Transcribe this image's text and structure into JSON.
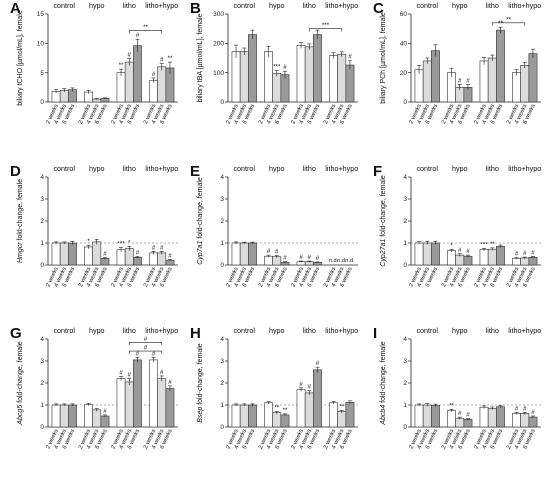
{
  "figure": {
    "groups": [
      "control",
      "hypo",
      "litho",
      "litho+hypo"
    ],
    "week_labels": [
      "2 weeks",
      "4 weeks",
      "6 weeks"
    ],
    "bar_colors": [
      "#ffffff",
      "#dcdcdc",
      "#9a9a9a"
    ]
  },
  "chart_data": [
    {
      "panel": "A",
      "type": "bar",
      "ylabel": "biliary tCHO [µmol/mL], female",
      "ylim": [
        0,
        15
      ],
      "yticks": [
        0,
        5,
        10,
        15
      ],
      "yticklabels": [
        "0",
        "5",
        "10",
        "15"
      ],
      "categories": [
        "control",
        "hypo",
        "litho",
        "litho+hypo"
      ],
      "series": [
        {
          "name": "2 weeks",
          "values": [
            1.8,
            1.7,
            5.0,
            3.7
          ],
          "errors": [
            0.3,
            0.3,
            0.6,
            0.4
          ]
        },
        {
          "name": "4 weeks",
          "values": [
            2.0,
            0.5,
            6.8,
            6.0
          ],
          "errors": [
            0.3,
            0.1,
            0.6,
            0.6
          ]
        },
        {
          "name": "6 weeks",
          "values": [
            2.1,
            0.6,
            9.6,
            5.8
          ],
          "errors": [
            0.3,
            0.1,
            1.1,
            1.0
          ]
        }
      ],
      "annotations": [
        {
          "group": 2,
          "bar": 0,
          "text": "**"
        },
        {
          "group": 2,
          "bar": 1,
          "text": "#"
        },
        {
          "group": 2,
          "bar": 2,
          "text": "#"
        },
        {
          "group": 3,
          "bar": 0,
          "text": "#"
        },
        {
          "group": 3,
          "bar": 1,
          "text": "#"
        },
        {
          "group": 3,
          "bar": 2,
          "text": "**"
        }
      ],
      "brackets": [
        {
          "from_group": 2,
          "to_group": 3,
          "y": 12.2,
          "text": "**"
        }
      ]
    },
    {
      "panel": "B",
      "type": "bar",
      "ylabel": "biliary tBA [µmol/mL], female",
      "ylim": [
        0,
        300
      ],
      "yticks": [
        0,
        100,
        200,
        300
      ],
      "yticklabels": [
        "0",
        "100",
        "200",
        "300"
      ],
      "categories": [
        "control",
        "hypo",
        "litho",
        "litho+hypo"
      ],
      "series": [
        {
          "name": "2 weeks",
          "values": [
            172,
            172,
            193,
            158
          ],
          "errors": [
            22,
            18,
            10,
            10
          ]
        },
        {
          "name": "4 weeks",
          "values": [
            172,
            98,
            188,
            163
          ],
          "errors": [
            12,
            10,
            10,
            8
          ]
        },
        {
          "name": "6 weeks",
          "values": [
            230,
            93,
            230,
            126
          ],
          "errors": [
            15,
            12,
            15,
            15
          ]
        }
      ],
      "annotations": [
        {
          "group": 1,
          "bar": 1,
          "text": "***"
        },
        {
          "group": 1,
          "bar": 2,
          "text": "#"
        },
        {
          "group": 3,
          "bar": 2,
          "text": "#"
        }
      ],
      "brackets": [
        {
          "from_group": 2,
          "to_group": 3,
          "y": 250,
          "text": "***"
        }
      ]
    },
    {
      "panel": "C",
      "type": "bar",
      "ylabel": "biliary PCh [µmol/mL], female",
      "ylim": [
        0,
        60
      ],
      "yticks": [
        0,
        20,
        40,
        60
      ],
      "yticklabels": [
        "0",
        "20",
        "40",
        "60"
      ],
      "categories": [
        "control",
        "hypo",
        "litho",
        "litho+hypo"
      ],
      "series": [
        {
          "name": "2 weeks",
          "values": [
            22,
            20,
            28,
            20
          ],
          "errors": [
            3,
            3,
            2.5,
            2
          ]
        },
        {
          "name": "4 weeks",
          "values": [
            28,
            10,
            30,
            25
          ],
          "errors": [
            2,
            2,
            2,
            2
          ]
        },
        {
          "name": "6 weeks",
          "values": [
            35,
            10,
            49,
            33
          ],
          "errors": [
            4,
            2,
            2,
            3
          ]
        }
      ],
      "annotations": [
        {
          "group": 1,
          "bar": 1,
          "text": "#"
        },
        {
          "group": 1,
          "bar": 2,
          "text": "#"
        },
        {
          "group": 2,
          "bar": 2,
          "text": "**"
        }
      ],
      "brackets": [
        {
          "from_group": 2,
          "to_group": 3,
          "y": 54,
          "text": "**"
        }
      ]
    },
    {
      "panel": "D",
      "type": "bar",
      "ylabel_italic": "Hmgcr",
      "ylabel": " fold-change, female",
      "ylim": [
        0,
        4
      ],
      "yticks": [
        0,
        1,
        2,
        3,
        4
      ],
      "yticklabels": [
        "0",
        "1",
        "2",
        "3",
        "4"
      ],
      "refline": 1,
      "categories": [
        "control",
        "hypo",
        "litho",
        "litho+hypo"
      ],
      "series": [
        {
          "name": "2 weeks",
          "values": [
            1.0,
            0.82,
            0.7,
            0.55
          ],
          "errors": [
            0.05,
            0.08,
            0.1,
            0.07
          ]
        },
        {
          "name": "4 weeks",
          "values": [
            1.0,
            1.05,
            0.75,
            0.55
          ],
          "errors": [
            0.05,
            0.12,
            0.1,
            0.07
          ]
        },
        {
          "name": "6 weeks",
          "values": [
            1.0,
            0.3,
            0.35,
            0.22
          ],
          "errors": [
            0.08,
            0.04,
            0.04,
            0.03
          ]
        }
      ],
      "annotations": [
        {
          "group": 1,
          "bar": 0,
          "text": "*"
        },
        {
          "group": 1,
          "bar": 2,
          "text": "#"
        },
        {
          "group": 2,
          "bar": 0,
          "text": "***"
        },
        {
          "group": 2,
          "bar": 1,
          "text": "*"
        },
        {
          "group": 2,
          "bar": 2,
          "text": "#"
        },
        {
          "group": 3,
          "bar": 0,
          "text": "#"
        },
        {
          "group": 3,
          "bar": 1,
          "text": "#"
        },
        {
          "group": 3,
          "bar": 2,
          "text": "#"
        }
      ],
      "brackets": []
    },
    {
      "panel": "E",
      "type": "bar",
      "ylabel_italic": "Cyp7a1",
      "ylabel": " fold-change, female",
      "ylim": [
        0,
        4
      ],
      "yticks": [
        0,
        1,
        2,
        3,
        4
      ],
      "yticklabels": [
        "0",
        "1",
        "2",
        "3",
        "4"
      ],
      "refline": 1,
      "categories": [
        "control",
        "hypo",
        "litho",
        "litho+hypo"
      ],
      "series": [
        {
          "name": "2 weeks",
          "values": [
            1.0,
            0.4,
            0.15,
            0
          ],
          "errors": [
            0.05,
            0.05,
            0.03,
            0
          ]
        },
        {
          "name": "4 weeks",
          "values": [
            1.0,
            0.38,
            0.15,
            0
          ],
          "errors": [
            0.04,
            0.05,
            0.03,
            0
          ]
        },
        {
          "name": "6 weeks",
          "values": [
            1.0,
            0.12,
            0.12,
            0
          ],
          "errors": [
            0.04,
            0.03,
            0.02,
            0
          ]
        }
      ],
      "annotations": [
        {
          "group": 1,
          "bar": 0,
          "text": "#"
        },
        {
          "group": 1,
          "bar": 1,
          "text": "#"
        },
        {
          "group": 1,
          "bar": 2,
          "text": "#"
        },
        {
          "group": 2,
          "bar": 0,
          "text": "#"
        },
        {
          "group": 2,
          "bar": 1,
          "text": "#"
        },
        {
          "group": 2,
          "bar": 2,
          "text": "#"
        }
      ],
      "nd_labels": [
        {
          "group": 3,
          "bar": 0,
          "text": "n.d."
        },
        {
          "group": 3,
          "bar": 1,
          "text": "n.d."
        },
        {
          "group": 3,
          "bar": 2,
          "text": "n.d."
        }
      ],
      "brackets": []
    },
    {
      "panel": "F",
      "type": "bar",
      "ylabel_italic": "Cyp27a1",
      "ylabel": " fold-change, female",
      "ylim": [
        0,
        4
      ],
      "yticks": [
        0,
        1,
        2,
        3,
        4
      ],
      "yticklabels": [
        "0",
        "1",
        "2",
        "3",
        "4"
      ],
      "refline": 1,
      "categories": [
        "control",
        "hypo",
        "litho",
        "litho+hypo"
      ],
      "series": [
        {
          "name": "2 weeks",
          "values": [
            1.0,
            0.65,
            0.7,
            0.3
          ],
          "errors": [
            0.06,
            0.06,
            0.06,
            0.04
          ]
        },
        {
          "name": "4 weeks",
          "values": [
            1.0,
            0.45,
            0.72,
            0.32
          ],
          "errors": [
            0.07,
            0.06,
            0.06,
            0.04
          ]
        },
        {
          "name": "6 weeks",
          "values": [
            1.0,
            0.4,
            0.85,
            0.35
          ],
          "errors": [
            0.07,
            0.05,
            0.06,
            0.04
          ]
        }
      ],
      "annotations": [
        {
          "group": 1,
          "bar": 0,
          "text": "*"
        },
        {
          "group": 1,
          "bar": 1,
          "text": "#"
        },
        {
          "group": 1,
          "bar": 2,
          "text": "#"
        },
        {
          "group": 2,
          "bar": 0,
          "text": "***"
        },
        {
          "group": 2,
          "bar": 1,
          "text": "**"
        },
        {
          "group": 3,
          "bar": 0,
          "text": "#"
        },
        {
          "group": 3,
          "bar": 1,
          "text": "#"
        },
        {
          "group": 3,
          "bar": 2,
          "text": "#"
        }
      ],
      "brackets": []
    },
    {
      "panel": "G",
      "type": "bar",
      "ylabel_italic": "Abcg5",
      "ylabel": " fold-change, female",
      "ylim": [
        0,
        4
      ],
      "yticks": [
        0,
        1,
        2,
        3,
        4
      ],
      "yticklabels": [
        "0",
        "1",
        "2",
        "3",
        "4"
      ],
      "refline": 1,
      "categories": [
        "control",
        "hypo",
        "litho",
        "litho+hypo"
      ],
      "series": [
        {
          "name": "2 weeks",
          "values": [
            1.0,
            1.02,
            2.2,
            3.05
          ],
          "errors": [
            0.05,
            0.05,
            0.1,
            0.12
          ]
        },
        {
          "name": "4 weeks",
          "values": [
            1.0,
            0.78,
            2.05,
            2.2
          ],
          "errors": [
            0.05,
            0.06,
            0.15,
            0.12
          ]
        },
        {
          "name": "6 weeks",
          "values": [
            1.0,
            0.5,
            3.05,
            1.75
          ],
          "errors": [
            0.05,
            0.05,
            0.12,
            0.12
          ]
        }
      ],
      "annotations": [
        {
          "group": 1,
          "bar": 2,
          "text": "#"
        },
        {
          "group": 2,
          "bar": 0,
          "text": "#"
        },
        {
          "group": 2,
          "bar": 1,
          "text": "#"
        },
        {
          "group": 2,
          "bar": 2,
          "text": "#"
        },
        {
          "group": 3,
          "bar": 0,
          "text": "#"
        },
        {
          "group": 3,
          "bar": 1,
          "text": "#"
        },
        {
          "group": 3,
          "bar": 2,
          "text": "#"
        }
      ],
      "brackets": [
        {
          "from_group": 2,
          "to_group": 3,
          "y": 3.45,
          "text": "#"
        },
        {
          "from_group": 2,
          "to_group": 3,
          "y": 3.85,
          "text": "#"
        }
      ]
    },
    {
      "panel": "H",
      "type": "bar",
      "ylabel_italic": "Bsep",
      "ylabel": " fold-change, female",
      "ylim": [
        0,
        4
      ],
      "yticks": [
        0,
        1,
        2,
        3,
        4
      ],
      "yticklabels": [
        "0",
        "1",
        "2",
        "3",
        "4"
      ],
      "refline": 1,
      "categories": [
        "control",
        "hypo",
        "litho",
        "litho+hypo"
      ],
      "series": [
        {
          "name": "2 weeks",
          "values": [
            1.0,
            1.1,
            1.7,
            1.1
          ],
          "errors": [
            0.05,
            0.06,
            0.08,
            0.06
          ]
        },
        {
          "name": "4 weeks",
          "values": [
            1.0,
            0.65,
            1.55,
            0.7
          ],
          "errors": [
            0.05,
            0.05,
            0.1,
            0.06
          ]
        },
        {
          "name": "6 weeks",
          "values": [
            1.0,
            0.55,
            2.6,
            1.12
          ],
          "errors": [
            0.05,
            0.05,
            0.12,
            0.07
          ]
        }
      ],
      "annotations": [
        {
          "group": 1,
          "bar": 1,
          "text": "**"
        },
        {
          "group": 1,
          "bar": 2,
          "text": "**"
        },
        {
          "group": 2,
          "bar": 0,
          "text": "#"
        },
        {
          "group": 2,
          "bar": 1,
          "text": "#"
        },
        {
          "group": 2,
          "bar": 2,
          "text": "#"
        },
        {
          "group": 3,
          "bar": 1,
          "text": "**"
        }
      ],
      "brackets": []
    },
    {
      "panel": "I",
      "type": "bar",
      "ylabel_italic": "Abcb4",
      "ylabel": " fold-change, female",
      "ylim": [
        0,
        4
      ],
      "yticks": [
        0,
        1,
        2,
        3,
        4
      ],
      "yticklabels": [
        "0",
        "1",
        "2",
        "3",
        "4"
      ],
      "refline": 1,
      "categories": [
        "control",
        "hypo",
        "litho",
        "litho+hypo"
      ],
      "series": [
        {
          "name": "2 weeks",
          "values": [
            1.0,
            0.75,
            0.9,
            0.62
          ],
          "errors": [
            0.05,
            0.05,
            0.06,
            0.05
          ]
        },
        {
          "name": "4 weeks",
          "values": [
            1.0,
            0.4,
            0.85,
            0.62
          ],
          "errors": [
            0.06,
            0.05,
            0.06,
            0.05
          ]
        },
        {
          "name": "6 weeks",
          "values": [
            0.98,
            0.35,
            0.92,
            0.45
          ],
          "errors": [
            0.06,
            0.04,
            0.05,
            0.05
          ]
        }
      ],
      "annotations": [
        {
          "group": 1,
          "bar": 0,
          "text": "**"
        },
        {
          "group": 1,
          "bar": 1,
          "text": "#"
        },
        {
          "group": 1,
          "bar": 2,
          "text": "#"
        },
        {
          "group": 3,
          "bar": 0,
          "text": "#"
        },
        {
          "group": 3,
          "bar": 1,
          "text": "#"
        },
        {
          "group": 3,
          "bar": 2,
          "text": "#"
        }
      ],
      "brackets": []
    }
  ]
}
